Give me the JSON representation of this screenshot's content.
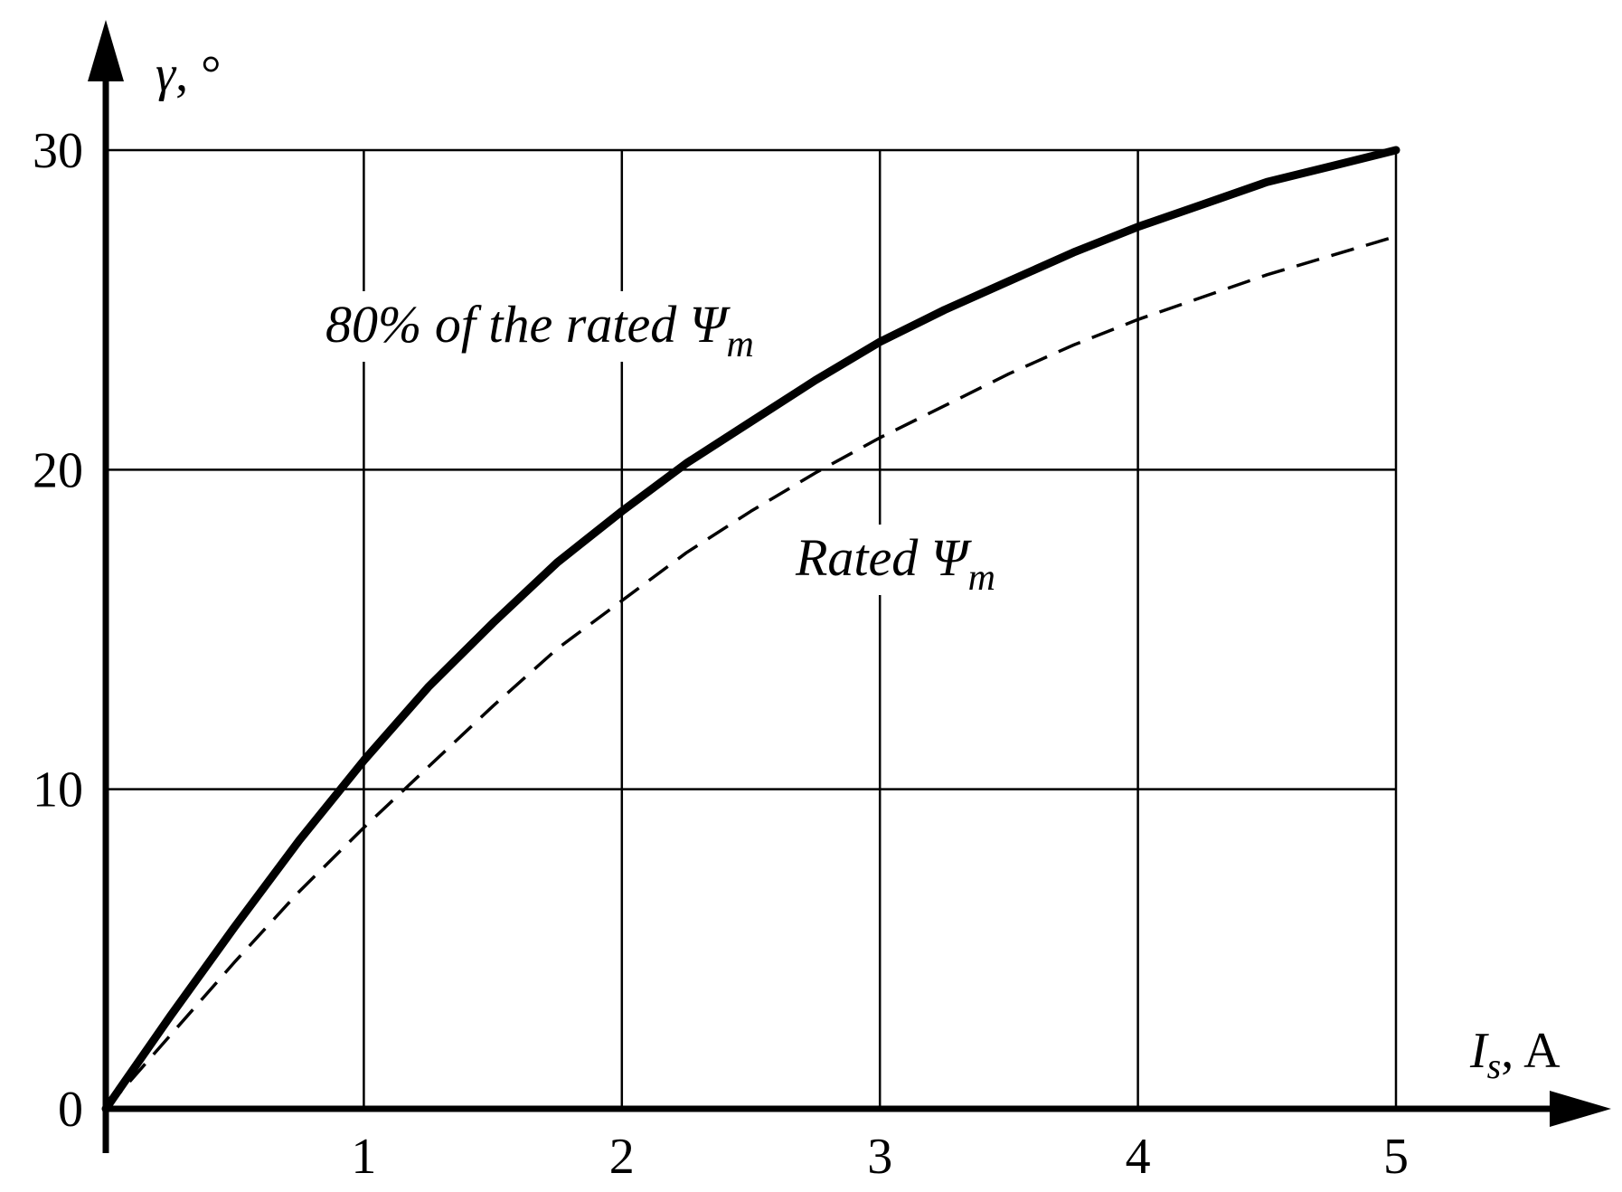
{
  "chart_data": {
    "type": "line",
    "title": "",
    "xlabel": {
      "symbol": "I",
      "subscript": "s",
      "unit": ", A"
    },
    "ylabel": {
      "symbol": "γ",
      "unit": ", °"
    },
    "xlim": [
      0,
      5
    ],
    "ylim": [
      0,
      30
    ],
    "x_ticks": [
      "1",
      "2",
      "3",
      "4",
      "5"
    ],
    "y_ticks": [
      "10",
      "20",
      "30"
    ],
    "origin_label": "0",
    "grid": true,
    "series": [
      {
        "name": {
          "text": "80% of the rated Ψ",
          "subscript": "m"
        },
        "style": "solid-thick",
        "x": [
          0,
          0.25,
          0.5,
          0.75,
          1.0,
          1.25,
          1.5,
          1.75,
          2.0,
          2.25,
          2.5,
          2.75,
          3.0,
          3.25,
          3.5,
          3.75,
          4.0,
          4.25,
          4.5,
          4.75,
          5.0
        ],
        "y": [
          0,
          2.9,
          5.7,
          8.4,
          10.9,
          13.2,
          15.2,
          17.1,
          18.7,
          20.2,
          21.5,
          22.8,
          24.0,
          25.0,
          25.9,
          26.8,
          27.6,
          28.3,
          29.0,
          29.5,
          30.0
        ]
      },
      {
        "name": {
          "text": "Rated Ψ",
          "subscript": "m"
        },
        "style": "dashed",
        "x": [
          0,
          0.25,
          0.5,
          0.75,
          1.0,
          1.25,
          1.5,
          1.75,
          2.0,
          2.25,
          2.5,
          2.75,
          3.0,
          3.25,
          3.5,
          3.75,
          4.0,
          4.25,
          4.5,
          4.75,
          5.0
        ],
        "y": [
          0,
          2.3,
          4.6,
          6.8,
          8.8,
          10.7,
          12.6,
          14.4,
          15.9,
          17.4,
          18.7,
          19.9,
          21.0,
          22.0,
          23.0,
          23.9,
          24.7,
          25.4,
          26.1,
          26.7,
          27.3
        ]
      }
    ]
  }
}
